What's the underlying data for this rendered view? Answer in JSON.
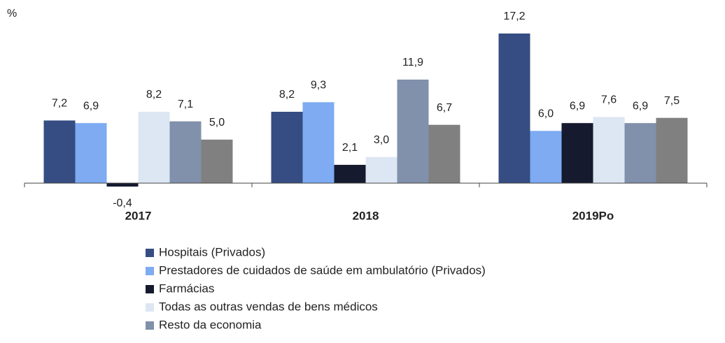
{
  "chart_data": {
    "type": "bar",
    "unit_label": "%",
    "categories": [
      "2017",
      "2018",
      "2019Po"
    ],
    "ylim": [
      -2,
      18
    ],
    "series": [
      {
        "name": "Hospitais (Privados)",
        "color": "#354d82",
        "values": [
          7.2,
          8.2,
          17.2
        ],
        "value_labels": [
          "7,2",
          "8,2",
          "17,2"
        ]
      },
      {
        "name": "Prestadores de cuidados de saúde em ambulatório  (Privados)",
        "color": "#7eabf2",
        "values": [
          6.9,
          9.3,
          6.0
        ],
        "value_labels": [
          "6,9",
          "9,3",
          "6,0"
        ]
      },
      {
        "name": "Farmácias",
        "color": "#151a2f",
        "values": [
          -0.4,
          2.1,
          6.9
        ],
        "value_labels": [
          "-0,4",
          "2,1",
          "6,9"
        ]
      },
      {
        "name": "Todas as outras vendas de bens médicos",
        "color": "#dde7f3",
        "values": [
          8.2,
          3.0,
          7.6
        ],
        "value_labels": [
          "8,2",
          "3,0",
          "7,6"
        ]
      },
      {
        "name": "Resto da economia",
        "color": "#8190ab",
        "values": [
          7.1,
          11.9,
          6.9
        ],
        "value_labels": [
          "7,1",
          "11,9",
          "6,9"
        ]
      },
      {
        "color": "#808080",
        "values": [
          5.0,
          6.7,
          7.5
        ],
        "value_labels": [
          "5,0",
          "6,7",
          "7,5"
        ]
      }
    ]
  }
}
